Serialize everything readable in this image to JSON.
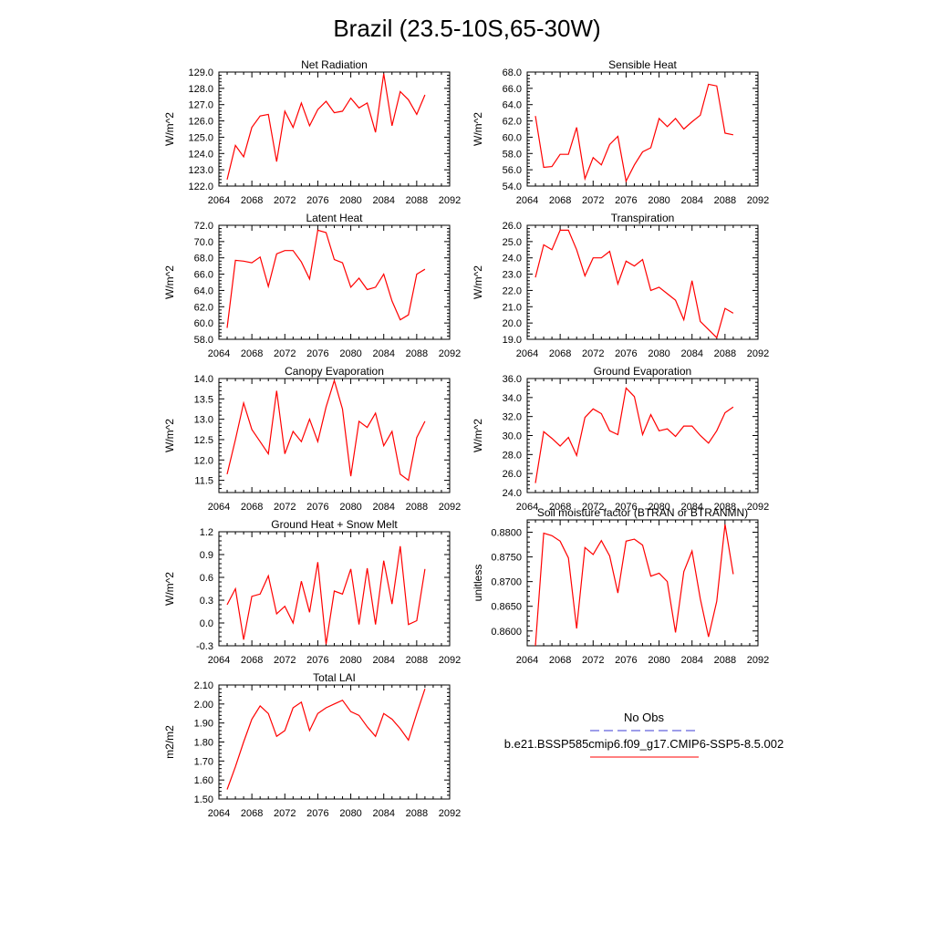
{
  "figure_title": "Brazil (23.5-10S,65-30W)",
  "legend": {
    "items": [
      {
        "label": "No Obs",
        "color": "#3b3bd6",
        "dash": true
      },
      {
        "label": "b.e21.BSSP585cmip6.f09_g17.CMIP6-SSP5-8.5.002",
        "color": "#ff0000",
        "dash": false
      }
    ]
  },
  "chart_data": [
    {
      "type": "line",
      "title": "Net Radiation",
      "ylabel": "W/m^2",
      "xlim": [
        2064,
        2092
      ],
      "ylim": [
        122.0,
        129.0
      ],
      "xticks": [
        2064,
        2068,
        2072,
        2076,
        2080,
        2084,
        2088,
        2092
      ],
      "yticks": [
        122.0,
        123.0,
        124.0,
        125.0,
        126.0,
        127.0,
        128.0,
        129.0
      ],
      "ytick_labels": [
        "122.0",
        "123.0",
        "124.0",
        "125.0",
        "126.0",
        "127.0",
        "128.0",
        "129.0"
      ],
      "x_start": 2065,
      "series": [
        {
          "color": "#ff0000",
          "values": [
            122.4,
            124.5,
            123.8,
            125.6,
            126.3,
            126.4,
            123.5,
            126.6,
            125.6,
            127.1,
            125.7,
            126.7,
            127.2,
            126.5,
            126.6,
            127.4,
            126.8,
            127.1,
            125.3,
            128.9,
            125.7,
            127.8,
            127.3,
            126.4,
            127.6
          ]
        }
      ]
    },
    {
      "type": "line",
      "title": "Sensible Heat",
      "ylabel": "W/m^2",
      "xlim": [
        2064,
        2092
      ],
      "ylim": [
        54.0,
        68.0
      ],
      "xticks": [
        2064,
        2068,
        2072,
        2076,
        2080,
        2084,
        2088,
        2092
      ],
      "yticks": [
        54.0,
        56.0,
        58.0,
        60.0,
        62.0,
        64.0,
        66.0,
        68.0
      ],
      "ytick_labels": [
        "54.0",
        "56.0",
        "58.0",
        "60.0",
        "62.0",
        "64.0",
        "66.0",
        "68.0"
      ],
      "x_start": 2065,
      "series": [
        {
          "color": "#ff0000",
          "values": [
            62.6,
            56.3,
            56.4,
            57.9,
            57.9,
            61.2,
            54.9,
            57.5,
            56.6,
            59.1,
            60.1,
            54.6,
            56.6,
            58.2,
            58.7,
            62.3,
            61.3,
            62.3,
            61.0,
            61.9,
            62.7,
            66.5,
            66.3,
            60.5,
            60.3
          ]
        }
      ]
    },
    {
      "type": "line",
      "title": "Latent Heat",
      "ylabel": "W/m^2",
      "xlim": [
        2064,
        2092
      ],
      "ylim": [
        58.0,
        72.0
      ],
      "xticks": [
        2064,
        2068,
        2072,
        2076,
        2080,
        2084,
        2088,
        2092
      ],
      "yticks": [
        58.0,
        60.0,
        62.0,
        64.0,
        66.0,
        68.0,
        70.0,
        72.0
      ],
      "ytick_labels": [
        "58.0",
        "60.0",
        "62.0",
        "64.0",
        "66.0",
        "68.0",
        "70.0",
        "72.0"
      ],
      "x_start": 2065,
      "series": [
        {
          "color": "#ff0000",
          "values": [
            59.4,
            67.7,
            67.6,
            67.4,
            68.1,
            64.5,
            68.5,
            68.9,
            68.9,
            67.5,
            65.4,
            71.4,
            71.1,
            67.8,
            67.4,
            64.4,
            65.5,
            64.1,
            64.4,
            66.0,
            62.7,
            60.4,
            61.0,
            66.0,
            66.6
          ]
        }
      ]
    },
    {
      "type": "line",
      "title": "Transpiration",
      "ylabel": "W/m^2",
      "xlim": [
        2064,
        2092
      ],
      "ylim": [
        19.0,
        26.0
      ],
      "xticks": [
        2064,
        2068,
        2072,
        2076,
        2080,
        2084,
        2088,
        2092
      ],
      "yticks": [
        19.0,
        20.0,
        21.0,
        22.0,
        23.0,
        24.0,
        25.0,
        26.0
      ],
      "ytick_labels": [
        "19.0",
        "20.0",
        "21.0",
        "22.0",
        "23.0",
        "24.0",
        "25.0",
        "26.0"
      ],
      "x_start": 2065,
      "series": [
        {
          "color": "#ff0000",
          "values": [
            22.8,
            24.8,
            24.5,
            25.7,
            25.7,
            24.5,
            22.9,
            24.0,
            24.0,
            24.4,
            22.4,
            23.8,
            23.5,
            23.9,
            22.0,
            22.2,
            21.8,
            21.4,
            20.2,
            22.6,
            20.1,
            19.6,
            19.1,
            20.9,
            20.6
          ]
        }
      ]
    },
    {
      "type": "line",
      "title": "Canopy Evaporation",
      "ylabel": "W/m^2",
      "xlim": [
        2064,
        2092
      ],
      "ylim": [
        11.2,
        14.0
      ],
      "xticks": [
        2064,
        2068,
        2072,
        2076,
        2080,
        2084,
        2088,
        2092
      ],
      "yticks": [
        11.5,
        12.0,
        12.5,
        13.0,
        13.5,
        14.0
      ],
      "ytick_labels": [
        "11.5",
        "12.0",
        "12.5",
        "13.0",
        "13.5",
        "14.0"
      ],
      "x_start": 2065,
      "series": [
        {
          "color": "#ff0000",
          "values": [
            11.65,
            12.5,
            13.4,
            12.75,
            12.45,
            12.15,
            13.7,
            12.15,
            12.7,
            12.45,
            13.0,
            12.45,
            13.3,
            13.95,
            13.25,
            11.6,
            12.95,
            12.8,
            13.15,
            12.35,
            12.7,
            11.65,
            11.5,
            12.55,
            12.95
          ]
        }
      ]
    },
    {
      "type": "line",
      "title": "Ground Evaporation",
      "ylabel": "W/m^2",
      "xlim": [
        2064,
        2092
      ],
      "ylim": [
        24.0,
        36.0
      ],
      "xticks": [
        2064,
        2068,
        2072,
        2076,
        2080,
        2084,
        2088,
        2092
      ],
      "yticks": [
        24.0,
        26.0,
        28.0,
        30.0,
        32.0,
        34.0,
        36.0
      ],
      "ytick_labels": [
        "24.0",
        "26.0",
        "28.0",
        "30.0",
        "32.0",
        "34.0",
        "36.0"
      ],
      "x_start": 2065,
      "series": [
        {
          "color": "#ff0000",
          "values": [
            25.0,
            30.4,
            29.7,
            28.9,
            29.8,
            27.9,
            31.9,
            32.8,
            32.3,
            30.5,
            30.1,
            35.0,
            34.1,
            30.1,
            32.2,
            30.5,
            30.7,
            29.9,
            31.0,
            31.0,
            30.0,
            29.2,
            30.5,
            32.4,
            33.0
          ]
        }
      ]
    },
    {
      "type": "line",
      "title": "Ground Heat + Snow Melt",
      "ylabel": "W/m^2",
      "xlim": [
        2064,
        2092
      ],
      "ylim": [
        -0.3,
        1.2
      ],
      "xticks": [
        2064,
        2068,
        2072,
        2076,
        2080,
        2084,
        2088,
        2092
      ],
      "yticks": [
        -0.3,
        0.0,
        0.3,
        0.6,
        0.9,
        1.2
      ],
      "ytick_labels": [
        "-0.3",
        "0.0",
        "0.3",
        "0.6",
        "0.9",
        "1.2"
      ],
      "x_start": 2065,
      "series": [
        {
          "color": "#ff0000",
          "values": [
            0.24,
            0.45,
            -0.22,
            0.35,
            0.38,
            0.62,
            0.12,
            0.22,
            0.0,
            0.55,
            0.14,
            0.8,
            -0.28,
            0.42,
            0.38,
            0.71,
            -0.02,
            0.72,
            -0.02,
            0.82,
            0.25,
            1.01,
            -0.02,
            0.03,
            0.71
          ]
        }
      ]
    },
    {
      "type": "line",
      "title": "Soil moisture factor (BTRAN or BTRANMN)",
      "ylabel": "unitless",
      "xlim": [
        2064,
        2092
      ],
      "ylim": [
        0.857,
        0.8825
      ],
      "xticks": [
        2064,
        2068,
        2072,
        2076,
        2080,
        2084,
        2088,
        2092
      ],
      "yticks": [
        0.86,
        0.865,
        0.87,
        0.875,
        0.88
      ],
      "ytick_labels": [
        "0.8600",
        "0.8650",
        "0.8700",
        "0.8750",
        "0.8800"
      ],
      "x_start": 2065,
      "series": [
        {
          "color": "#ff0000",
          "values": [
            0.857,
            0.8798,
            0.8793,
            0.8782,
            0.8748,
            0.8605,
            0.8769,
            0.8755,
            0.8783,
            0.8752,
            0.8677,
            0.8782,
            0.8786,
            0.8774,
            0.8711,
            0.8717,
            0.87,
            0.8597,
            0.872,
            0.8762,
            0.8665,
            0.8588,
            0.866,
            0.8816,
            0.8715
          ]
        }
      ]
    },
    {
      "type": "line",
      "title": "Total LAI",
      "ylabel": "m2/m2",
      "xlim": [
        2064,
        2092
      ],
      "ylim": [
        1.5,
        2.1
      ],
      "xticks": [
        2064,
        2068,
        2072,
        2076,
        2080,
        2084,
        2088,
        2092
      ],
      "yticks": [
        1.5,
        1.6,
        1.7,
        1.8,
        1.9,
        2.0,
        2.1
      ],
      "ytick_labels": [
        "1.50",
        "1.60",
        "1.70",
        "1.80",
        "1.90",
        "2.00",
        "2.10"
      ],
      "x_start": 2065,
      "series": [
        {
          "color": "#ff0000",
          "values": [
            1.55,
            1.67,
            1.8,
            1.92,
            1.99,
            1.95,
            1.83,
            1.86,
            1.98,
            2.01,
            1.86,
            1.95,
            1.98,
            2.0,
            2.02,
            1.96,
            1.94,
            1.88,
            1.83,
            1.95,
            1.92,
            1.87,
            1.81,
            1.95,
            2.08
          ]
        }
      ]
    }
  ]
}
